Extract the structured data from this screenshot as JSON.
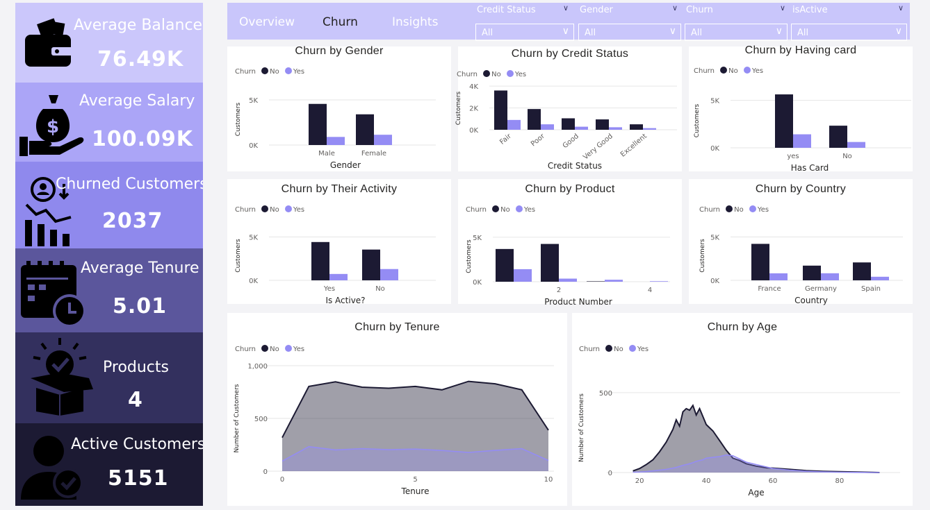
{
  "colors": {
    "no": "#1c1a33",
    "yes": "#948cf4",
    "grid": "#e6e6e6",
    "axis_text": "#605e5c",
    "title": "#252423"
  },
  "kpis": [
    {
      "label": "Average Balance",
      "value": "76.49K",
      "icon": "wallet-icon",
      "bg": "#cbc7fb"
    },
    {
      "label": "Average Salary",
      "value": "100.09K",
      "icon": "money-bag-hand-icon",
      "bg": "#ab a5f7"
    },
    {
      "label": "Churned Customers",
      "value": "2037",
      "icon": "churn-analytics-icon",
      "bg": "#8f89ed"
    },
    {
      "label": "Average Tenure",
      "value": "5.01",
      "icon": "calendar-clock-icon",
      "bg": "#5b569c"
    },
    {
      "label": "Products",
      "value": "4",
      "icon": "box-check-icon",
      "bg": "#33305e"
    },
    {
      "label": "Active Customers",
      "value": "5151",
      "icon": "user-check-icon",
      "bg": "#1c1a33"
    }
  ],
  "nav": {
    "tabs": [
      "Overview",
      "Churn",
      "Insights"
    ],
    "active": "Churn"
  },
  "filters": [
    {
      "label": "Credit Status",
      "value": "All"
    },
    {
      "label": "Gender",
      "value": "All"
    },
    {
      "label": "Churn",
      "value": "All"
    },
    {
      "label": "isActive",
      "value": "All"
    }
  ],
  "legend": {
    "title": "Churn",
    "no": "No",
    "yes": "Yes"
  },
  "chart_data": [
    {
      "id": "gender",
      "type": "bar",
      "title": "Churn by Gender",
      "xlabel": "Gender",
      "ylabel": "Customers",
      "categories": [
        "Male",
        "Female"
      ],
      "ylim": [
        0,
        6000
      ],
      "yticks": [
        0,
        5000
      ],
      "ytick_labels": [
        "0K",
        "5K"
      ],
      "series": [
        {
          "name": "No",
          "values": [
            4559,
            3404
          ]
        },
        {
          "name": "Yes",
          "values": [
            898,
            1139
          ]
        }
      ]
    },
    {
      "id": "credit",
      "type": "bar",
      "title": "Churn by Credit Status",
      "xlabel": "Credit Status",
      "ylabel": "Customers",
      "categories": [
        "Fair",
        "Poor",
        "Good",
        "Very Good",
        "Excellent"
      ],
      "ylim": [
        0,
        4200
      ],
      "yticks": [
        0,
        2000,
        4000
      ],
      "ytick_labels": [
        "0K",
        "2K",
        "4K"
      ],
      "series": [
        {
          "name": "No",
          "values": [
            3600,
            1900,
            1050,
            950,
            500
          ]
        },
        {
          "name": "Yes",
          "values": [
            900,
            500,
            280,
            230,
            150
          ]
        }
      ]
    },
    {
      "id": "card",
      "type": "bar",
      "title": "Churn by Having card",
      "xlabel": "Has Card",
      "ylabel": "Customers",
      "categories": [
        "yes",
        "No"
      ],
      "ylim": [
        0,
        6000
      ],
      "yticks": [
        0,
        5000
      ],
      "ytick_labels": [
        "0K",
        "5K"
      ],
      "series": [
        {
          "name": "No",
          "values": [
            5631,
            2332
          ]
        },
        {
          "name": "Yes",
          "values": [
            1424,
            613
          ]
        }
      ]
    },
    {
      "id": "activity",
      "type": "bar",
      "title": "Churn by Their Activity",
      "xlabel": "Is Active?",
      "ylabel": "Customers",
      "categories": [
        "Yes",
        "No"
      ],
      "ylim": [
        0,
        6000
      ],
      "yticks": [
        0,
        5000
      ],
      "ytick_labels": [
        "0K",
        "5K"
      ],
      "series": [
        {
          "name": "No",
          "values": [
            4416,
            3547
          ]
        },
        {
          "name": "Yes",
          "values": [
            735,
            1302
          ]
        }
      ]
    },
    {
      "id": "product",
      "type": "bar",
      "title": "Churn by Product",
      "xlabel": "Product Number",
      "ylabel": "Customers",
      "categories": [
        "1",
        "2",
        "3",
        "4"
      ],
      "xtick_labels": [
        "",
        "2",
        "",
        "4"
      ],
      "ylim": [
        0,
        6000
      ],
      "yticks": [
        0,
        5000
      ],
      "ytick_labels": [
        "0K",
        "5K"
      ],
      "series": [
        {
          "name": "No",
          "values": [
            3675,
            4242,
            46,
            0
          ]
        },
        {
          "name": "Yes",
          "values": [
            1409,
            348,
            220,
            60
          ]
        }
      ]
    },
    {
      "id": "country",
      "type": "bar",
      "title": "Churn by Country",
      "xlabel": "Country",
      "ylabel": "Customers",
      "categories": [
        "France",
        "Germany",
        "Spain"
      ],
      "ylim": [
        0,
        6000
      ],
      "yticks": [
        0,
        5000
      ],
      "ytick_labels": [
        "0K",
        "5K"
      ],
      "series": [
        {
          "name": "No",
          "values": [
            4204,
            1695,
            2064
          ]
        },
        {
          "name": "Yes",
          "values": [
            810,
            814,
            413
          ]
        }
      ]
    },
    {
      "id": "tenure",
      "type": "area",
      "title": "Churn by Tenure",
      "xlabel": "Tenure",
      "ylabel": "Number of Customers",
      "x": [
        0,
        1,
        2,
        3,
        4,
        5,
        6,
        7,
        8,
        9,
        10
      ],
      "xlim": [
        0,
        10
      ],
      "xticks": [
        0,
        5,
        10
      ],
      "ylim": [
        0,
        1000
      ],
      "yticks": [
        0,
        500,
        1000
      ],
      "ytick_labels": [
        "0",
        "500",
        "1,000"
      ],
      "series": [
        {
          "name": "No",
          "values": [
            318,
            803,
            847,
            796,
            786,
            803,
            771,
            851,
            828,
            771,
            389
          ]
        },
        {
          "name": "Yes",
          "values": [
            95,
            232,
            201,
            213,
            203,
            209,
            196,
            177,
            197,
            213,
            101
          ]
        }
      ]
    },
    {
      "id": "age",
      "type": "area",
      "title": "Churn by Age",
      "xlabel": "Age",
      "ylabel": "Number of Customers",
      "x": [
        18,
        20,
        22,
        24,
        26,
        28,
        30,
        31,
        32,
        33,
        34,
        35,
        36,
        37,
        38,
        39,
        40,
        42,
        44,
        46,
        48,
        50,
        52,
        55,
        58,
        60,
        65,
        70,
        75,
        80,
        85,
        90,
        92
      ],
      "xlim": [
        16,
        94
      ],
      "xticks": [
        20,
        40,
        60,
        80
      ],
      "ylim": [
        0,
        560
      ],
      "yticks": [
        0,
        500
      ],
      "ytick_labels": [
        "0",
        "500"
      ],
      "series": [
        {
          "name": "No",
          "values": [
            10,
            25,
            50,
            80,
            130,
            190,
            270,
            330,
            290,
            380,
            400,
            390,
            420,
            360,
            400,
            350,
            300,
            260,
            200,
            140,
            90,
            75,
            55,
            40,
            30,
            28,
            20,
            12,
            8,
            5,
            3,
            1,
            0
          ]
        },
        {
          "name": "Yes",
          "values": [
            2,
            3,
            6,
            10,
            15,
            20,
            28,
            32,
            38,
            45,
            50,
            55,
            62,
            70,
            75,
            80,
            90,
            95,
            100,
            110,
            105,
            85,
            65,
            50,
            35,
            25,
            15,
            8,
            4,
            2,
            1,
            0,
            0
          ]
        }
      ]
    }
  ]
}
